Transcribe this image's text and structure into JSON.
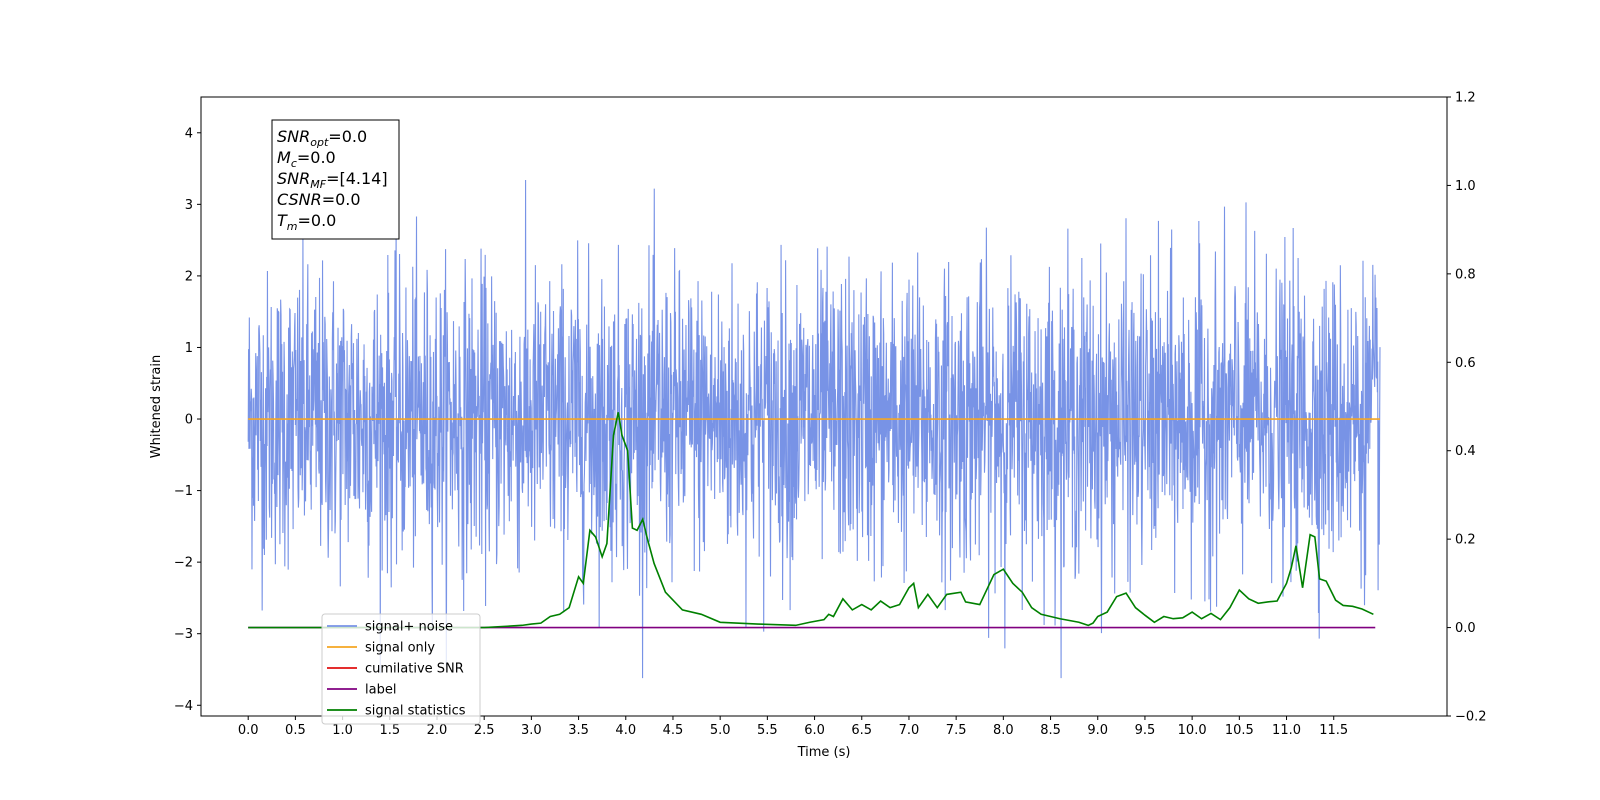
{
  "chart_data": {
    "type": "line",
    "xlabel": "Time (s)",
    "ylabel": "Whitened strain",
    "xlim": [
      -0.5,
      12.7
    ],
    "ylim": [
      -4.15,
      4.5
    ],
    "ylim_right": [
      -0.2,
      1.2
    ],
    "x_ticks": [
      0.0,
      0.5,
      1.0,
      1.5,
      2.0,
      2.5,
      3.0,
      3.5,
      4.0,
      4.5,
      5.0,
      5.5,
      6.0,
      6.5,
      7.0,
      7.5,
      8.0,
      8.5,
      9.0,
      9.5,
      10.0,
      10.5,
      11.0,
      11.5
    ],
    "x_tick_labels": [
      "0.0",
      "0.5",
      "1.0",
      "1.5",
      "2.0",
      "2.5",
      "3.0",
      "3.5",
      "4.0",
      "4.5",
      "5.0",
      "5.5",
      "6.0",
      "6.5",
      "7.0",
      "7.5",
      "8.0",
      "8.5",
      "9.0",
      "9.5",
      "10.0",
      "10.5",
      "11.0",
      "11.5"
    ],
    "y_ticks": [
      -4,
      -3,
      -2,
      -1,
      0,
      1,
      2,
      3,
      4
    ],
    "y_tick_labels": [
      "−4",
      "−3",
      "−2",
      "−1",
      "0",
      "1",
      "2",
      "3",
      "4"
    ],
    "y_right_ticks": [
      -0.2,
      0.0,
      0.2,
      0.4,
      0.6,
      0.8,
      1.0,
      1.2
    ],
    "y_right_tick_labels": [
      "−0.2",
      "0.0",
      "0.2",
      "0.4",
      "0.6",
      "0.8",
      "1.0",
      "1.2"
    ],
    "grid": false,
    "legend_position": "bottom-left",
    "annotation": {
      "lines": [
        {
          "main": "SNR",
          "sub": "opt",
          "rest": "=0.0"
        },
        {
          "main": "M",
          "sub": "c",
          "rest": "=0.0"
        },
        {
          "main": "SNR",
          "sub": "MF",
          "rest": "=[4.14]"
        },
        {
          "main": "CSNR",
          "sub": "",
          "rest": "=0.0"
        },
        {
          "main": "T",
          "sub": "m",
          "rest": "=0.0"
        }
      ]
    },
    "series": [
      {
        "name": "signal+ noise",
        "axis": "left",
        "color": "#7893e6",
        "kind": "noise",
        "x_range": [
          0.0,
          11.99
        ],
        "mean": 0.0,
        "std": 1.0,
        "approx_max": 4.12,
        "approx_min": -3.62
      },
      {
        "name": "signal only",
        "axis": "left",
        "color": "#f5a623",
        "x": [
          0.0,
          11.99
        ],
        "y": [
          0.0,
          0.0
        ]
      },
      {
        "name": "cumilative SNR",
        "axis": "right",
        "color": "#e01010",
        "x": [],
        "y": []
      },
      {
        "name": "label",
        "axis": "right",
        "color": "#800080",
        "x": [
          0.0,
          11.94
        ],
        "y": [
          0.0,
          0.0
        ]
      },
      {
        "name": "signal statistics",
        "axis": "right",
        "color": "#008000",
        "x": [
          0.0,
          2.5,
          2.9,
          3.0,
          3.1,
          3.2,
          3.3,
          3.4,
          3.5,
          3.55,
          3.62,
          3.68,
          3.75,
          3.8,
          3.87,
          3.92,
          3.96,
          4.02,
          4.07,
          4.12,
          4.18,
          4.23,
          4.3,
          4.42,
          4.6,
          4.8,
          5.0,
          5.4,
          5.8,
          5.95,
          6.1,
          6.15,
          6.2,
          6.3,
          6.4,
          6.5,
          6.6,
          6.7,
          6.8,
          6.9,
          7.0,
          7.05,
          7.1,
          7.2,
          7.3,
          7.4,
          7.55,
          7.6,
          7.75,
          7.9,
          8.0,
          8.1,
          8.2,
          8.3,
          8.4,
          8.5,
          8.6,
          8.8,
          8.9,
          8.95,
          9.0,
          9.1,
          9.2,
          9.3,
          9.4,
          9.5,
          9.6,
          9.7,
          9.8,
          9.9,
          10.0,
          10.1,
          10.2,
          10.3,
          10.4,
          10.5,
          10.6,
          10.7,
          10.8,
          10.9,
          11.0,
          11.05,
          11.1,
          11.17,
          11.25,
          11.3,
          11.35,
          11.42,
          11.52,
          11.6,
          11.7,
          11.8,
          11.92
        ],
        "y": [
          0.0,
          0.0,
          0.005,
          0.008,
          0.01,
          0.025,
          0.03,
          0.045,
          0.115,
          0.1,
          0.22,
          0.205,
          0.16,
          0.19,
          0.435,
          0.487,
          0.435,
          0.4,
          0.225,
          0.22,
          0.245,
          0.2,
          0.145,
          0.08,
          0.04,
          0.03,
          0.012,
          0.008,
          0.005,
          0.012,
          0.018,
          0.03,
          0.025,
          0.065,
          0.04,
          0.052,
          0.04,
          0.06,
          0.045,
          0.052,
          0.09,
          0.1,
          0.045,
          0.075,
          0.045,
          0.075,
          0.08,
          0.058,
          0.052,
          0.12,
          0.132,
          0.1,
          0.08,
          0.045,
          0.03,
          0.025,
          0.02,
          0.012,
          0.005,
          0.01,
          0.025,
          0.035,
          0.07,
          0.078,
          0.045,
          0.028,
          0.012,
          0.025,
          0.02,
          0.022,
          0.035,
          0.02,
          0.032,
          0.018,
          0.045,
          0.085,
          0.065,
          0.055,
          0.058,
          0.06,
          0.1,
          0.135,
          0.185,
          0.09,
          0.21,
          0.205,
          0.11,
          0.105,
          0.062,
          0.05,
          0.048,
          0.042,
          0.03
        ]
      }
    ]
  }
}
